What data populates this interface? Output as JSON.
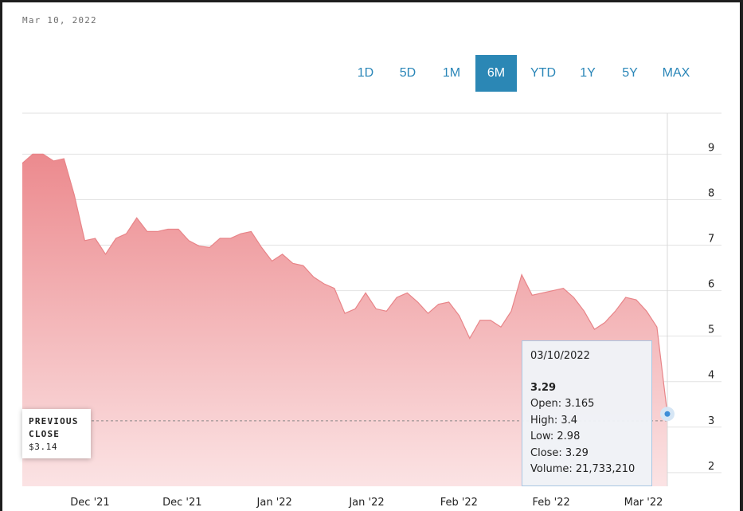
{
  "header": {
    "date": "Mar 10, 2022"
  },
  "ranges": [
    {
      "label": "1D",
      "active": false
    },
    {
      "label": "5D",
      "active": false
    },
    {
      "label": "1M",
      "active": false
    },
    {
      "label": "6M",
      "active": true
    },
    {
      "label": "YTD",
      "active": false
    },
    {
      "label": "1Y",
      "active": false
    },
    {
      "label": "5Y",
      "active": false
    },
    {
      "label": "MAX",
      "active": false
    }
  ],
  "previous_close": {
    "label_line1": "PREVIOUS",
    "label_line2": "CLOSE",
    "value": "$3.14"
  },
  "tooltip": {
    "date": "03/10/2022",
    "price": "3.29",
    "open": "Open: 3.165",
    "high": "High: 3.4",
    "low": "Low: 2.98",
    "close": "Close: 3.29",
    "volume": "Volume: 21,733,210"
  },
  "colors": {
    "area_top": "#ec8a8e",
    "area_bottom": "#fbe3e4",
    "accent": "#2b87b5",
    "marker": "#3d8ed8",
    "grid": "#e2e2e2"
  },
  "chart_data": {
    "type": "area",
    "title": "",
    "xlabel": "",
    "ylabel": "",
    "ylim": [
      1.7,
      9.9
    ],
    "yticks": [
      2,
      3,
      4,
      5,
      6,
      7,
      8,
      9
    ],
    "xtick_labels": [
      "Dec '21",
      "Dec '21",
      "Jan '22",
      "Jan '22",
      "Feb '22",
      "Feb '22",
      "Mar '22"
    ],
    "previous_close": 3.14,
    "grid": true,
    "series": [
      {
        "values": [
          8.8,
          9.0,
          9.0,
          8.85,
          8.9,
          8.1,
          7.1,
          7.15,
          6.8,
          7.15,
          7.25,
          7.6,
          7.3,
          7.3,
          7.35,
          7.35,
          7.1,
          6.98,
          6.95,
          7.15,
          7.15,
          7.25,
          7.3,
          6.95,
          6.65,
          6.8,
          6.6,
          6.55,
          6.3,
          6.15,
          6.05,
          5.5,
          5.6,
          5.95,
          5.6,
          5.55,
          5.85,
          5.95,
          5.75,
          5.5,
          5.7,
          5.75,
          5.45,
          4.95,
          5.35,
          5.35,
          5.2,
          5.55,
          6.35,
          5.9,
          5.95,
          6.0,
          6.05,
          5.85,
          5.55,
          5.15,
          5.3,
          5.55,
          5.85,
          5.8,
          5.55,
          5.2,
          3.29
        ]
      }
    ]
  }
}
